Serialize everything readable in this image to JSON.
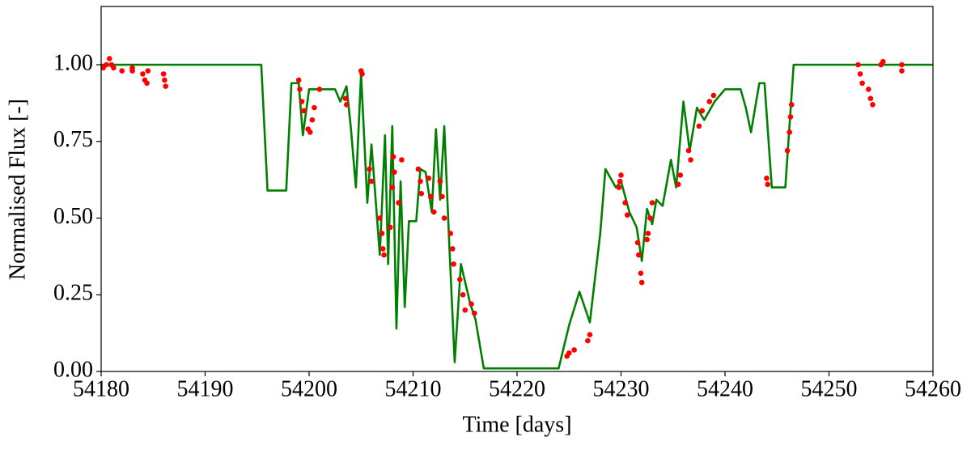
{
  "chart_data": {
    "type": "line",
    "xlabel": "Time [days]",
    "ylabel": "Normalised Flux [-]",
    "xlim": [
      54180,
      54260
    ],
    "ylim": [
      0,
      1.19
    ],
    "xticks": [
      54180,
      54190,
      54200,
      54210,
      54220,
      54230,
      54240,
      54250,
      54260
    ],
    "yticks": [
      {
        "value": 0,
        "label": "0.00"
      },
      {
        "value": 0.25,
        "label": "0.25"
      },
      {
        "value": 0.5,
        "label": "0.50"
      },
      {
        "value": 0.75,
        "label": "0.75"
      },
      {
        "value": 1,
        "label": "1.00"
      }
    ],
    "grid": false,
    "series": [
      {
        "type": "line",
        "color": "#008000",
        "x": [
          54180,
          54195.4,
          54196,
          54197.8,
          54198.3,
          54199,
          54199.4,
          54200,
          54202.5,
          54203,
          54203.6,
          54204,
          54204.5,
          54205,
          54205.6,
          54206,
          54206.8,
          54207.3,
          54207.6,
          54208,
          54208.4,
          54208.8,
          54209.2,
          54209.6,
          54210.3,
          54210.7,
          54211.2,
          54211.8,
          54212.2,
          54212.6,
          54213,
          54213.5,
          54214,
          54214.6,
          54215.5,
          54216,
          54216.8,
          54224,
          54225,
          54226,
          54227,
          54228,
          54228.5,
          54229.5,
          54230,
          54230.8,
          54231.5,
          54232,
          54232.5,
          54233,
          54233.4,
          54234,
          54234.8,
          54235.3,
          54236,
          54236.6,
          54237.3,
          54238,
          54239,
          54240,
          54241.5,
          54242,
          54242.5,
          54243.3,
          54243.8,
          54244.5,
          54245.8,
          54246.6,
          54260
        ],
        "values": [
          1,
          1,
          0.59,
          0.59,
          0.94,
          0.94,
          0.77,
          0.92,
          0.92,
          0.88,
          0.93,
          0.8,
          0.6,
          0.97,
          0.55,
          0.74,
          0.38,
          0.77,
          0.35,
          0.8,
          0.14,
          0.62,
          0.21,
          0.49,
          0.49,
          0.66,
          0.65,
          0.52,
          0.79,
          0.56,
          0.8,
          0.4,
          0.03,
          0.35,
          0.22,
          0.17,
          0.01,
          0.01,
          0.15,
          0.26,
          0.16,
          0.45,
          0.66,
          0.6,
          0.62,
          0.52,
          0.47,
          0.36,
          0.53,
          0.48,
          0.56,
          0.54,
          0.69,
          0.6,
          0.88,
          0.72,
          0.86,
          0.82,
          0.88,
          0.92,
          0.92,
          0.86,
          0.78,
          0.94,
          0.94,
          0.6,
          0.6,
          1,
          1
        ]
      },
      {
        "type": "scatter",
        "color": "#ff0000",
        "x": [
          54180.2,
          54180.5,
          54180.8,
          54181,
          54181.2,
          54182,
          54183,
          54183,
          54184,
          54184.2,
          54184.4,
          54184.5,
          54186,
          54186.1,
          54186.2,
          54199,
          54199.1,
          54199.3,
          54199.5,
          54199.9,
          54200.1,
          54200.3,
          54200.5,
          54201,
          54203.5,
          54203.6,
          54205,
          54205.1,
          54205.8,
          54206,
          54206.8,
          54207,
          54207.1,
          54207.2,
          54207.8,
          54208,
          54208.1,
          54208.2,
          54208.9,
          54208.6,
          54210.5,
          54210.7,
          54210.8,
          54211.5,
          54211.7,
          54212,
          54212.6,
          54212.8,
          54213,
          54213.6,
          54213.8,
          54213.9,
          54214.5,
          54214.8,
          54215,
          54215.6,
          54215.9,
          54224.8,
          54225,
          54225.5,
          54226.8,
          54227,
          54230,
          54229.8,
          54229.9,
          54230.4,
          54230.6,
          54231.6,
          54231.7,
          54231.9,
          54232,
          54232.6,
          54232.8,
          54233,
          54232.5,
          54235.5,
          54235.7,
          54236.5,
          54236.7,
          54237.5,
          54237.8,
          54238.5,
          54238.9,
          54244,
          54244.1,
          54246,
          54246.2,
          54246.3,
          54246.4,
          54252.8,
          54253,
          54253.2,
          54253.8,
          54254,
          54254.2,
          54255,
          54255.2,
          54257,
          54257
        ],
        "values": [
          0.99,
          1,
          1.02,
          1,
          0.99,
          0.98,
          0.99,
          0.98,
          0.97,
          0.95,
          0.94,
          0.98,
          0.97,
          0.95,
          0.93,
          0.95,
          0.92,
          0.88,
          0.85,
          0.79,
          0.78,
          0.82,
          0.86,
          0.92,
          0.89,
          0.87,
          0.98,
          0.97,
          0.66,
          0.62,
          0.5,
          0.45,
          0.4,
          0.38,
          0.47,
          0.6,
          0.7,
          0.65,
          0.69,
          0.55,
          0.66,
          0.62,
          0.58,
          0.63,
          0.57,
          0.52,
          0.62,
          0.57,
          0.5,
          0.45,
          0.4,
          0.35,
          0.3,
          0.25,
          0.2,
          0.22,
          0.19,
          0.05,
          0.06,
          0.07,
          0.1,
          0.12,
          0.64,
          0.6,
          0.62,
          0.55,
          0.51,
          0.42,
          0.38,
          0.32,
          0.29,
          0.45,
          0.5,
          0.55,
          0.43,
          0.61,
          0.64,
          0.72,
          0.69,
          0.8,
          0.85,
          0.88,
          0.9,
          0.63,
          0.61,
          0.72,
          0.78,
          0.83,
          0.87,
          1,
          0.97,
          0.94,
          0.92,
          0.89,
          0.87,
          1,
          1.01,
          0.98,
          1
        ]
      }
    ]
  }
}
